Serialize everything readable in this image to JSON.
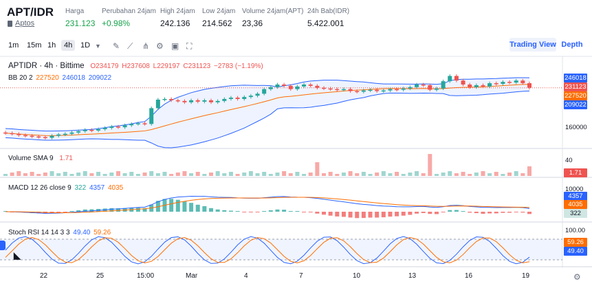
{
  "header": {
    "pair": "APT/IDR",
    "subtitle": "Aptos",
    "stats": [
      {
        "label": "Harga",
        "value": "231.123",
        "color": "green"
      },
      {
        "label": "Perubahan 24jam",
        "value": "+0.98%",
        "color": "green"
      },
      {
        "label": "High 24jam",
        "value": "242.136"
      },
      {
        "label": "Low 24jam",
        "value": "214.562"
      },
      {
        "label": "Volume 24jam(APT)",
        "value": "23,36"
      },
      {
        "label": "24h Bab(IDR)",
        "value": "5.422.001"
      }
    ]
  },
  "toolbar": {
    "timeframes": [
      "1m",
      "15m",
      "1h",
      "4h",
      "1D"
    ],
    "active": "4h",
    "tools": [
      "chevron-down-icon",
      "brush-icon",
      "indicator-icon",
      "compare-icon",
      "settings-icon",
      "save-icon",
      "fullscreen-icon"
    ],
    "trading_view": "Trading View",
    "depth": "Depth"
  },
  "chart_data": [
    {
      "type": "candlestick",
      "title": "APTIDR · 4h · Bittime",
      "ohlc": {
        "o": "O234179",
        "h": "H237608",
        "l": "L229197",
        "c": "C231123",
        "chg": "−2783 (−1.19%)"
      },
      "bb": {
        "label": "BB 20 2",
        "basis": "227520",
        "upper": "246018",
        "lower": "209022"
      },
      "price_tags": [
        "246018",
        "231123",
        "227520",
        "209022"
      ],
      "axis_label": "160000",
      "close": [
        162000,
        161000,
        159000,
        158000,
        157000,
        156000,
        155000,
        158000,
        160000,
        161000,
        163000,
        165000,
        167000,
        166000,
        168000,
        170000,
        172000,
        171000,
        174000,
        176000,
        177000,
        176000,
        200000,
        213000,
        214000,
        212000,
        211000,
        209000,
        212000,
        210000,
        212000,
        209000,
        211000,
        214000,
        216000,
        214000,
        217000,
        219000,
        222000,
        229000,
        232000,
        236000,
        234000,
        229000,
        233000,
        236000,
        234000,
        231000,
        230000,
        229000,
        228000,
        229000,
        226000,
        225000,
        227000,
        228000,
        226000,
        227000,
        229000,
        228000,
        230000,
        232000,
        236000,
        235000,
        228000,
        230000,
        241000,
        249000,
        242000,
        236000,
        232000,
        235000,
        233000,
        238000,
        237000,
        240000,
        239000,
        242000,
        238000,
        231000
      ]
    },
    {
      "type": "bar",
      "title": "Volume SMA 9",
      "value_label": "1.71",
      "axis_label": "40",
      "tag": "1.71"
    },
    {
      "type": "macd",
      "title": "MACD 12 26 close 9",
      "hist": "322",
      "macd": "4357",
      "signal": "4035",
      "axis_label": "10000",
      "tags": [
        "4357",
        "4035",
        "322"
      ]
    },
    {
      "type": "line",
      "title": "Stoch RSI 14 14 3 3",
      "k": "49.40",
      "d": "59.26",
      "axis_label": "100.00",
      "tags": [
        "59.26",
        "49.40"
      ]
    }
  ],
  "xaxis": [
    "22",
    "25",
    "15:00",
    "Mar",
    "4",
    "7",
    "10",
    "13",
    "16",
    "19"
  ]
}
